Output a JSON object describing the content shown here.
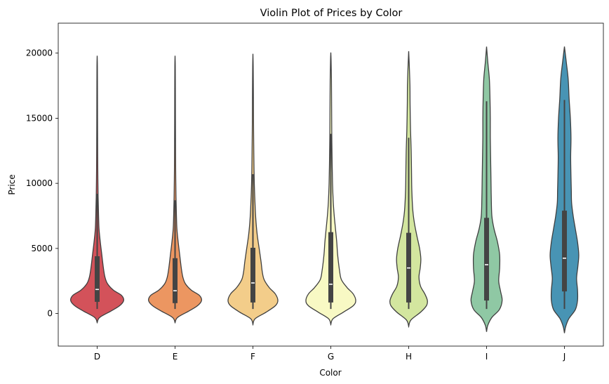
{
  "chart_data": {
    "type": "violin",
    "title": "Violin Plot of Prices by Color",
    "xlabel": "Color",
    "ylabel": "Price",
    "ylim": [
      -2500,
      22300
    ],
    "yticks": [
      0,
      5000,
      10000,
      15000,
      20000
    ],
    "grid": false,
    "categories": [
      "D",
      "E",
      "F",
      "G",
      "H",
      "I",
      "J"
    ],
    "colors": [
      "#d3525a",
      "#ec9661",
      "#f3cd8a",
      "#f8f9c4",
      "#d3e69f",
      "#8fc8a4",
      "#4894b4"
    ],
    "series": [
      {
        "category": "D",
        "extent": [
          -700,
          19800
        ],
        "box": {
          "min": 350,
          "q1": 900,
          "median": 1850,
          "q3": 4400,
          "max": 9200
        },
        "density": [
          [
            -700,
            0
          ],
          [
            -300,
            0.08
          ],
          [
            200,
            0.45
          ],
          [
            600,
            0.72
          ],
          [
            1000,
            0.85
          ],
          [
            1400,
            0.78
          ],
          [
            1800,
            0.52
          ],
          [
            2300,
            0.33
          ],
          [
            2800,
            0.25
          ],
          [
            3500,
            0.2
          ],
          [
            4500,
            0.15
          ],
          [
            5500,
            0.1
          ],
          [
            6500,
            0.06
          ],
          [
            7500,
            0.045
          ],
          [
            9000,
            0.03
          ],
          [
            11000,
            0.02
          ],
          [
            13000,
            0.015
          ],
          [
            15000,
            0.012
          ],
          [
            17000,
            0.01
          ],
          [
            19000,
            0.007
          ],
          [
            19800,
            0
          ]
        ]
      },
      {
        "category": "E",
        "extent": [
          -700,
          19800
        ],
        "box": {
          "min": 350,
          "q1": 800,
          "median": 1750,
          "q3": 4250,
          "max": 8700
        },
        "density": [
          [
            -700,
            0
          ],
          [
            -300,
            0.08
          ],
          [
            200,
            0.45
          ],
          [
            600,
            0.72
          ],
          [
            1000,
            0.85
          ],
          [
            1400,
            0.78
          ],
          [
            1800,
            0.52
          ],
          [
            2300,
            0.33
          ],
          [
            2800,
            0.25
          ],
          [
            3500,
            0.2
          ],
          [
            4500,
            0.15
          ],
          [
            5500,
            0.1
          ],
          [
            6500,
            0.06
          ],
          [
            7500,
            0.045
          ],
          [
            9000,
            0.03
          ],
          [
            11000,
            0.02
          ],
          [
            13000,
            0.015
          ],
          [
            15000,
            0.012
          ],
          [
            17000,
            0.01
          ],
          [
            19000,
            0.007
          ],
          [
            19800,
            0
          ]
        ]
      },
      {
        "category": "F",
        "extent": [
          -850,
          19950
        ],
        "box": {
          "min": 350,
          "q1": 850,
          "median": 2350,
          "q3": 5050,
          "max": 10700
        },
        "density": [
          [
            -850,
            0
          ],
          [
            -400,
            0.07
          ],
          [
            100,
            0.42
          ],
          [
            600,
            0.72
          ],
          [
            1000,
            0.8
          ],
          [
            1500,
            0.72
          ],
          [
            2000,
            0.52
          ],
          [
            2600,
            0.36
          ],
          [
            3200,
            0.3
          ],
          [
            4000,
            0.26
          ],
          [
            5000,
            0.2
          ],
          [
            6000,
            0.14
          ],
          [
            7000,
            0.1
          ],
          [
            8000,
            0.075
          ],
          [
            9500,
            0.05
          ],
          [
            11000,
            0.035
          ],
          [
            13000,
            0.025
          ],
          [
            15000,
            0.018
          ],
          [
            17000,
            0.014
          ],
          [
            19000,
            0.008
          ],
          [
            19950,
            0
          ]
        ]
      },
      {
        "category": "G",
        "extent": [
          -850,
          20050
        ],
        "box": {
          "min": 350,
          "q1": 850,
          "median": 2250,
          "q3": 6250,
          "max": 13800
        },
        "density": [
          [
            -850,
            0
          ],
          [
            -400,
            0.07
          ],
          [
            100,
            0.4
          ],
          [
            600,
            0.72
          ],
          [
            1000,
            0.8
          ],
          [
            1500,
            0.72
          ],
          [
            2000,
            0.52
          ],
          [
            2600,
            0.34
          ],
          [
            3300,
            0.28
          ],
          [
            4500,
            0.22
          ],
          [
            5500,
            0.19
          ],
          [
            6500,
            0.15
          ],
          [
            7500,
            0.11
          ],
          [
            8500,
            0.08
          ],
          [
            10000,
            0.055
          ],
          [
            12000,
            0.04
          ],
          [
            14000,
            0.03
          ],
          [
            16000,
            0.025
          ],
          [
            18000,
            0.02
          ],
          [
            19500,
            0.008
          ],
          [
            20050,
            0
          ]
        ]
      },
      {
        "category": "H",
        "extent": [
          -1000,
          20150
        ],
        "box": {
          "min": 350,
          "q1": 850,
          "median": 3500,
          "q3": 6200,
          "max": 13500
        },
        "density": [
          [
            -1000,
            0
          ],
          [
            -500,
            0.07
          ],
          [
            100,
            0.38
          ],
          [
            600,
            0.57
          ],
          [
            1000,
            0.6
          ],
          [
            1500,
            0.52
          ],
          [
            2100,
            0.38
          ],
          [
            2800,
            0.33
          ],
          [
            3500,
            0.37
          ],
          [
            4200,
            0.39
          ],
          [
            5000,
            0.35
          ],
          [
            6000,
            0.26
          ],
          [
            7000,
            0.18
          ],
          [
            8000,
            0.13
          ],
          [
            9500,
            0.1
          ],
          [
            11000,
            0.09
          ],
          [
            12500,
            0.08
          ],
          [
            14000,
            0.06
          ],
          [
            16000,
            0.045
          ],
          [
            17500,
            0.04
          ],
          [
            19000,
            0.02
          ],
          [
            20150,
            0
          ]
        ]
      },
      {
        "category": "I",
        "extent": [
          -1400,
          20500
        ],
        "box": {
          "min": 350,
          "q1": 1000,
          "median": 3750,
          "q3": 7350,
          "max": 16300
        },
        "density": [
          [
            -1400,
            0
          ],
          [
            -900,
            0.04
          ],
          [
            -300,
            0.17
          ],
          [
            300,
            0.41
          ],
          [
            1000,
            0.5
          ],
          [
            1700,
            0.45
          ],
          [
            2500,
            0.39
          ],
          [
            3500,
            0.42
          ],
          [
            4500,
            0.42
          ],
          [
            5500,
            0.35
          ],
          [
            6500,
            0.24
          ],
          [
            7500,
            0.17
          ],
          [
            9000,
            0.15
          ],
          [
            10500,
            0.14
          ],
          [
            12000,
            0.13
          ],
          [
            13500,
            0.12
          ],
          [
            15000,
            0.12
          ],
          [
            16500,
            0.11
          ],
          [
            18000,
            0.09
          ],
          [
            19300,
            0.04
          ],
          [
            20500,
            0
          ]
        ]
      },
      {
        "category": "J",
        "extent": [
          -1500,
          20500
        ],
        "box": {
          "min": 350,
          "q1": 1700,
          "median": 4250,
          "q3": 7900,
          "max": 16400
        },
        "density": [
          [
            -1500,
            0
          ],
          [
            -1000,
            0.04
          ],
          [
            -400,
            0.14
          ],
          [
            300,
            0.35
          ],
          [
            1000,
            0.42
          ],
          [
            1800,
            0.42
          ],
          [
            2700,
            0.39
          ],
          [
            3600,
            0.43
          ],
          [
            4500,
            0.46
          ],
          [
            5500,
            0.42
          ],
          [
            6500,
            0.35
          ],
          [
            7500,
            0.28
          ],
          [
            8500,
            0.23
          ],
          [
            9500,
            0.22
          ],
          [
            10500,
            0.21
          ],
          [
            12000,
            0.2
          ],
          [
            13500,
            0.21
          ],
          [
            15000,
            0.19
          ],
          [
            16500,
            0.15
          ],
          [
            18000,
            0.12
          ],
          [
            19300,
            0.06
          ],
          [
            20500,
            0
          ]
        ]
      }
    ]
  }
}
